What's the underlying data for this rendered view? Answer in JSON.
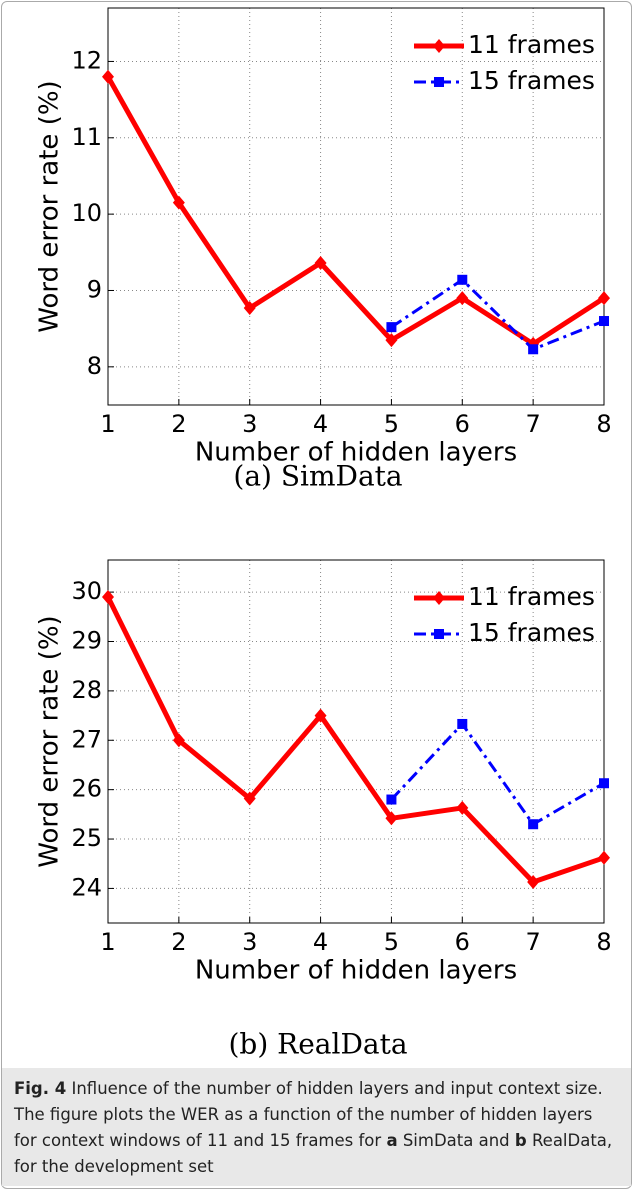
{
  "chart_data": [
    {
      "type": "line",
      "subtitle": "(a) SimData",
      "xlabel": "Number of hidden layers",
      "ylabel": "Word error rate (%)",
      "x": [
        1,
        2,
        3,
        4,
        5,
        6,
        7,
        8
      ],
      "xlim": [
        1,
        8
      ],
      "xticks": [
        1,
        2,
        3,
        4,
        5,
        6,
        7,
        8
      ],
      "ylim": [
        7.5,
        12.7
      ],
      "yticks": [
        8,
        9,
        10,
        11,
        12
      ],
      "grid": true,
      "legend": "upper right",
      "series": [
        {
          "name": "11 frames",
          "color": "#ff0000",
          "style": "solid",
          "marker": "diamond",
          "values": [
            11.8,
            10.15,
            8.77,
            9.36,
            8.35,
            8.9,
            8.3,
            8.9
          ]
        },
        {
          "name": "15 frames",
          "color": "#0000ff",
          "style": "dashdot",
          "marker": "square",
          "values": [
            null,
            null,
            null,
            null,
            8.52,
            9.14,
            8.23,
            8.6
          ]
        }
      ]
    },
    {
      "type": "line",
      "subtitle": "(b) RealData",
      "xlabel": "Number of hidden layers",
      "ylabel": "Word error rate (%)",
      "x": [
        1,
        2,
        3,
        4,
        5,
        6,
        7,
        8
      ],
      "xlim": [
        1,
        8
      ],
      "xticks": [
        1,
        2,
        3,
        4,
        5,
        6,
        7,
        8
      ],
      "ylim": [
        23.3,
        30.65
      ],
      "yticks": [
        24,
        25,
        26,
        27,
        28,
        29,
        30
      ],
      "grid": true,
      "legend": "upper right",
      "series": [
        {
          "name": "11 frames",
          "color": "#ff0000",
          "style": "solid",
          "marker": "diamond",
          "values": [
            29.9,
            27.0,
            25.82,
            27.5,
            25.42,
            25.63,
            24.13,
            24.62
          ]
        },
        {
          "name": "15 frames",
          "color": "#0000ff",
          "style": "dashdot",
          "marker": "square",
          "values": [
            null,
            null,
            null,
            null,
            25.8,
            27.33,
            25.3,
            26.13
          ]
        }
      ]
    }
  ],
  "caption": {
    "segments": [
      {
        "text": "Fig. 4",
        "bold": true
      },
      {
        "text": " Influence of the number of hidden layers and input context size. The figure plots the WER as a function of the number of hidden layers for context windows of 11 and 15 frames for ",
        "bold": false
      },
      {
        "text": "a",
        "bold": true
      },
      {
        "text": " SimData and ",
        "bold": false
      },
      {
        "text": "b",
        "bold": true
      },
      {
        "text": " RealData, for the development set",
        "bold": false
      }
    ]
  }
}
